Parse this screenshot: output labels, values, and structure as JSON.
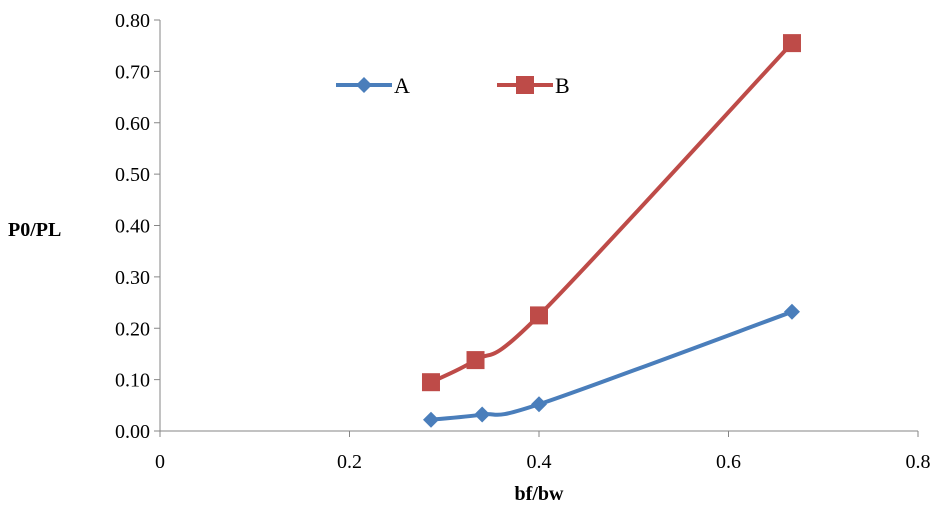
{
  "chart_data": {
    "type": "line",
    "title": "",
    "xlabel": "bf/bw",
    "ylabel": "P0/PL",
    "xlim": [
      0,
      0.8
    ],
    "ylim": [
      0,
      0.8
    ],
    "x_ticks": [
      "0",
      "0.2",
      "0.4",
      "0.6",
      "0.8"
    ],
    "y_ticks": [
      "0.00",
      "0.10",
      "0.20",
      "0.30",
      "0.40",
      "0.50",
      "0.60",
      "0.70",
      "0.80"
    ],
    "grid": false,
    "legend": "top-center",
    "smooth": true,
    "series": [
      {
        "name": "A",
        "color": "#4a7ebb",
        "marker": "diamond",
        "x": [
          0.286,
          0.34,
          0.4,
          0.667
        ],
        "y": [
          0.022,
          0.032,
          0.052,
          0.232
        ]
      },
      {
        "name": "B",
        "color": "#be4b48",
        "marker": "square",
        "x": [
          0.286,
          0.333,
          0.4,
          0.667
        ],
        "y": [
          0.095,
          0.138,
          0.225,
          0.755
        ]
      }
    ]
  }
}
